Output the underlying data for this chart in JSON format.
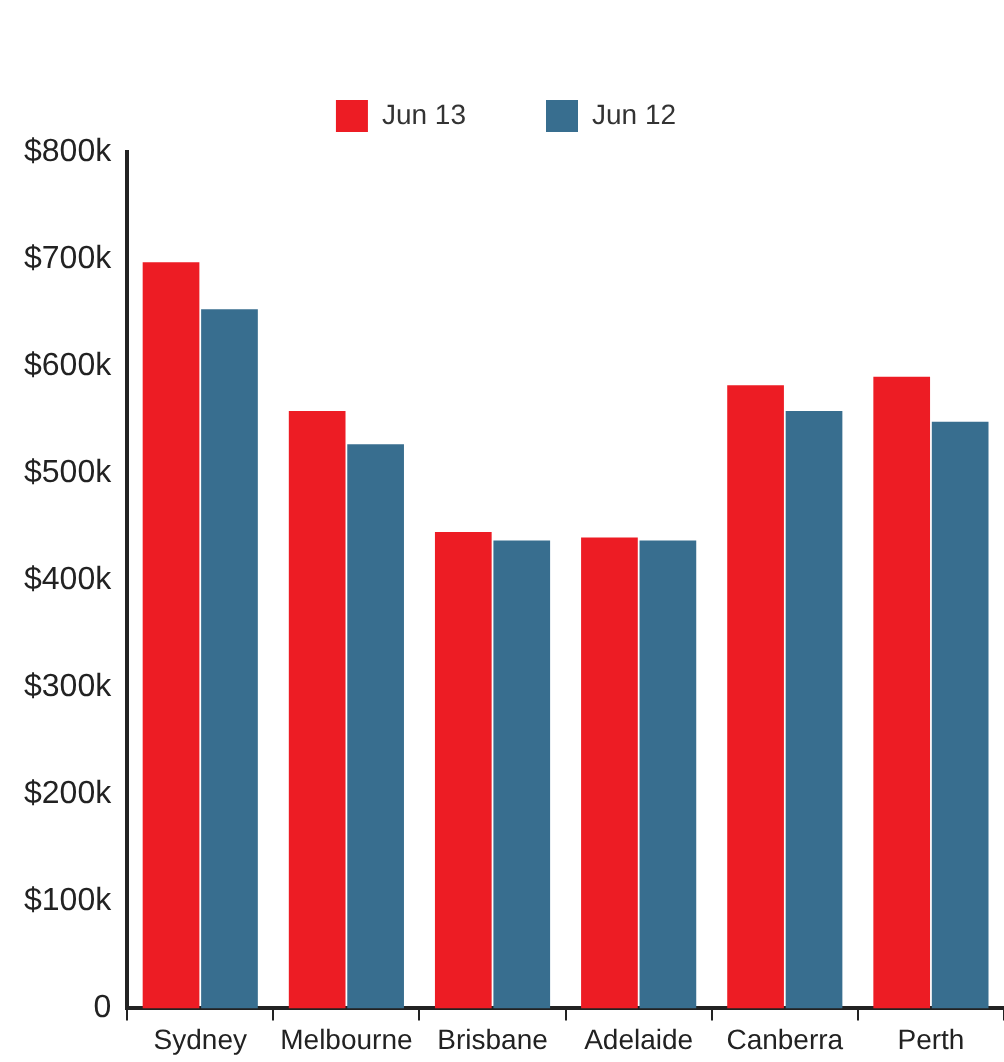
{
  "chart_data": {
    "type": "bar",
    "categories": [
      "Sydney",
      "Melbourne",
      "Brisbane",
      "Adelaide",
      "Canberra",
      "Perth"
    ],
    "series": [
      {
        "name": "Jun 13",
        "color": "#ed1c24",
        "values": [
          697,
          558,
          445,
          440,
          582,
          590
        ]
      },
      {
        "name": "Jun 12",
        "color": "#386e8f",
        "values": [
          653,
          527,
          437,
          437,
          558,
          548
        ]
      }
    ],
    "ylim": [
      0,
      800
    ],
    "yticks": [
      {
        "value": 0,
        "label": "0"
      },
      {
        "value": 100,
        "label": "$100k"
      },
      {
        "value": 200,
        "label": "$200k"
      },
      {
        "value": 300,
        "label": "$300k"
      },
      {
        "value": 400,
        "label": "$400k"
      },
      {
        "value": 500,
        "label": "$500k"
      },
      {
        "value": 600,
        "label": "$600k"
      },
      {
        "value": 700,
        "label": "$700k"
      },
      {
        "value": 800,
        "label": "$800k"
      }
    ],
    "legend": "top"
  }
}
